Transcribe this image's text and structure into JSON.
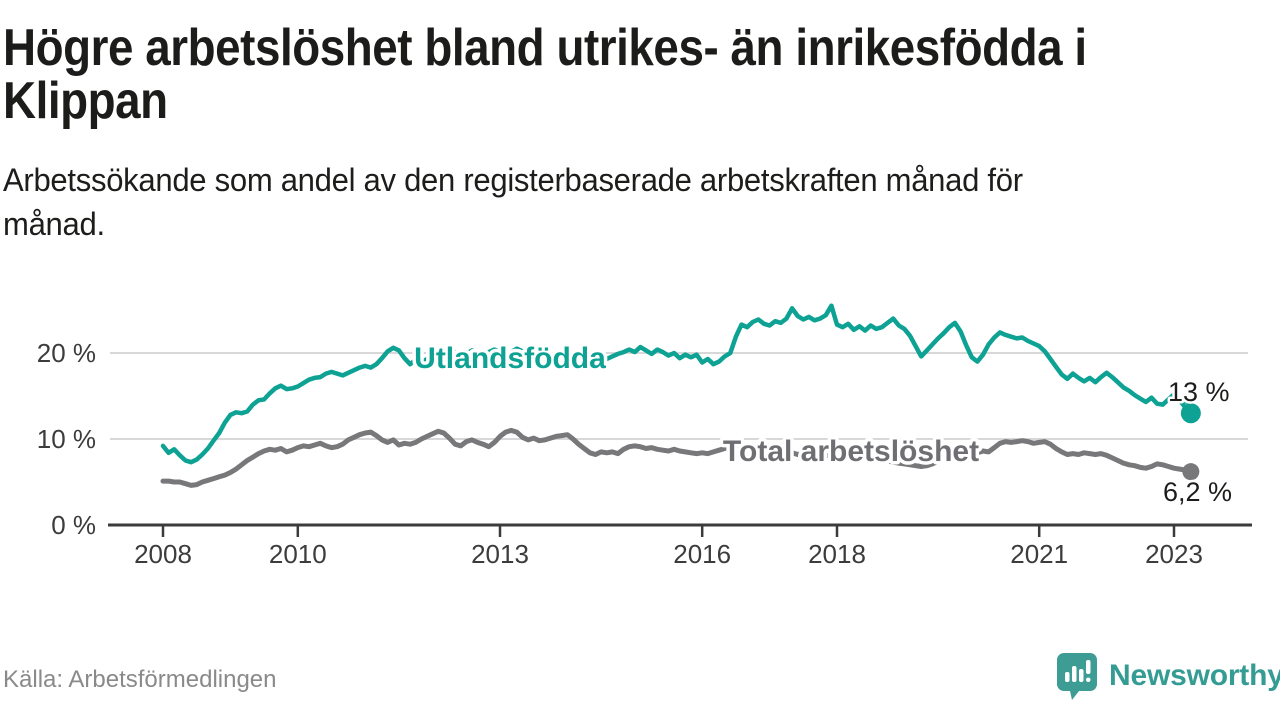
{
  "page": {
    "title_line1": "Högre arbetslöshet bland utrikes- än inrikesfödda i",
    "title_line2": "Klippan",
    "subtitle_line1": "Arbetssökande som andel av den registerbaserade arbetskraften månad för",
    "subtitle_line2": "månad.",
    "source": "Källa: Arbetsförmedlingen"
  },
  "brand": {
    "name": "Newsworthy",
    "icon": "speech-bubble-bar-chart-icon",
    "color": "#3d9c94"
  },
  "colors": {
    "teal_series": "#0da293",
    "gray_series": "#78787a",
    "gray_label": "#6f6f73",
    "axis": "#3b3b3b",
    "gridline": "#d8d8d8",
    "end_label_text": "#1d1d1b"
  },
  "chart_data": {
    "type": "line",
    "title": "Högre arbetslöshet bland utrikes- än inrikesfödda i Klippan",
    "subtitle": "Arbetssökande som andel av den registerbaserade arbetskraften månad för månad.",
    "x_unit": "year (monthly points)",
    "x_start_year": 2008,
    "x_step_years": 0.0833333,
    "x_end_year": 2023.25,
    "x_axis_ticks": [
      2008,
      2010,
      2013,
      2016,
      2018,
      2021,
      2023
    ],
    "y_axis_ticks": [
      {
        "value": 0,
        "label": "0 %"
      },
      {
        "value": 10,
        "label": "10 %"
      },
      {
        "value": 20,
        "label": "20 %"
      }
    ],
    "ylim": [
      0,
      27
    ],
    "grid": "horizontal-only",
    "legend": "inline-labels-on-lines",
    "series": [
      {
        "name": "Utlandsfödda",
        "color": "#0da293",
        "end_label": "13 %",
        "end_value": 13.0,
        "values": [
          9.2,
          8.4,
          8.8,
          8.1,
          7.5,
          7.3,
          7.6,
          8.2,
          8.9,
          9.8,
          10.7,
          11.9,
          12.8,
          13.1,
          13.0,
          13.2,
          14.0,
          14.5,
          14.6,
          15.3,
          15.9,
          16.2,
          15.8,
          15.9,
          16.1,
          16.5,
          16.9,
          17.1,
          17.2,
          17.6,
          17.8,
          17.6,
          17.4,
          17.7,
          18.0,
          18.3,
          18.5,
          18.3,
          18.7,
          19.4,
          20.2,
          20.6,
          20.3,
          19.4,
          18.7,
          19.2,
          18.9,
          19.3,
          19.8,
          20.2,
          19.9,
          20.4,
          20.1,
          19.6,
          19.9,
          20.3,
          20.0,
          19.7,
          20.1,
          20.4,
          20.2,
          19.8,
          20.1,
          20.5,
          20.2,
          19.8,
          19.5,
          19.9,
          20.2,
          19.8,
          19.5,
          19.7,
          19.9,
          19.6,
          19.2,
          19.5,
          19.8,
          19.4,
          19.0,
          19.3,
          19.6,
          19.9,
          20.1,
          20.4,
          20.1,
          20.7,
          20.3,
          19.9,
          20.4,
          20.1,
          19.7,
          20.0,
          19.4,
          19.8,
          19.5,
          19.8,
          18.9,
          19.3,
          18.7,
          19.0,
          19.6,
          20.0,
          21.9,
          23.3,
          23.0,
          23.6,
          23.9,
          23.4,
          23.2,
          23.7,
          23.5,
          24.0,
          25.2,
          24.3,
          23.9,
          24.2,
          23.8,
          24.0,
          24.4,
          25.5,
          23.3,
          23.0,
          23.4,
          22.7,
          23.1,
          22.6,
          23.2,
          22.8,
          23.0,
          23.5,
          24.0,
          23.2,
          22.8,
          22.0,
          20.8,
          19.6,
          20.3,
          21.0,
          21.7,
          22.3,
          23.0,
          23.5,
          22.5,
          20.9,
          19.5,
          19.0,
          19.8,
          21.0,
          21.8,
          22.4,
          22.1,
          21.9,
          21.7,
          21.8,
          21.4,
          21.1,
          20.8,
          20.2,
          19.3,
          18.4,
          17.5,
          17.0,
          17.6,
          17.1,
          16.7,
          17.1,
          16.6,
          17.2,
          17.7,
          17.2,
          16.6,
          16.0,
          15.6,
          15.1,
          14.7,
          14.3,
          14.8,
          14.1,
          14.0,
          14.6,
          15.2,
          14.5,
          13.7,
          13.0
        ]
      },
      {
        "name": "Total arbetslöshet",
        "color": "#78787a",
        "end_label": "6,2 %",
        "end_value": 6.2,
        "values": [
          5.1,
          5.1,
          5.0,
          5.0,
          4.8,
          4.6,
          4.7,
          5.0,
          5.2,
          5.4,
          5.6,
          5.8,
          6.1,
          6.5,
          7.0,
          7.5,
          7.9,
          8.3,
          8.6,
          8.8,
          8.7,
          8.9,
          8.5,
          8.7,
          9.0,
          9.2,
          9.1,
          9.3,
          9.5,
          9.2,
          9.0,
          9.1,
          9.4,
          9.9,
          10.2,
          10.5,
          10.7,
          10.8,
          10.4,
          9.9,
          9.6,
          9.9,
          9.3,
          9.5,
          9.4,
          9.6,
          10.0,
          10.3,
          10.6,
          10.9,
          10.7,
          10.1,
          9.4,
          9.2,
          9.7,
          9.9,
          9.6,
          9.4,
          9.1,
          9.6,
          10.3,
          10.8,
          11.0,
          10.8,
          10.2,
          9.9,
          10.1,
          9.8,
          9.9,
          10.1,
          10.3,
          10.4,
          10.5,
          10.0,
          9.4,
          8.9,
          8.4,
          8.2,
          8.5,
          8.4,
          8.5,
          8.3,
          8.8,
          9.1,
          9.2,
          9.1,
          8.9,
          9.0,
          8.8,
          8.7,
          8.6,
          8.8,
          8.6,
          8.5,
          8.4,
          8.3,
          8.4,
          8.3,
          8.5,
          8.7,
          8.9,
          9.1,
          8.9,
          9.0,
          8.8,
          8.6,
          8.7,
          8.5,
          8.6,
          8.4,
          8.5,
          8.3,
          8.4,
          8.2,
          8.3,
          8.1,
          8.2,
          8.0,
          8.1,
          8.0,
          7.9,
          7.8,
          7.9,
          7.7,
          7.8,
          7.6,
          7.5,
          7.6,
          7.4,
          7.5,
          7.3,
          7.2,
          7.1,
          7.0,
          6.9,
          6.8,
          6.9,
          7.1,
          7.4,
          7.7,
          8.0,
          8.2,
          8.4,
          8.5,
          8.2,
          8.4,
          8.6,
          8.5,
          9.0,
          9.5,
          9.7,
          9.6,
          9.7,
          9.8,
          9.7,
          9.5,
          9.6,
          9.7,
          9.4,
          8.9,
          8.5,
          8.2,
          8.3,
          8.2,
          8.4,
          8.3,
          8.2,
          8.3,
          8.1,
          7.8,
          7.5,
          7.2,
          7.0,
          6.9,
          6.7,
          6.6,
          6.8,
          7.1,
          7.0,
          6.8,
          6.6,
          6.5,
          6.4,
          6.2
        ]
      }
    ]
  }
}
